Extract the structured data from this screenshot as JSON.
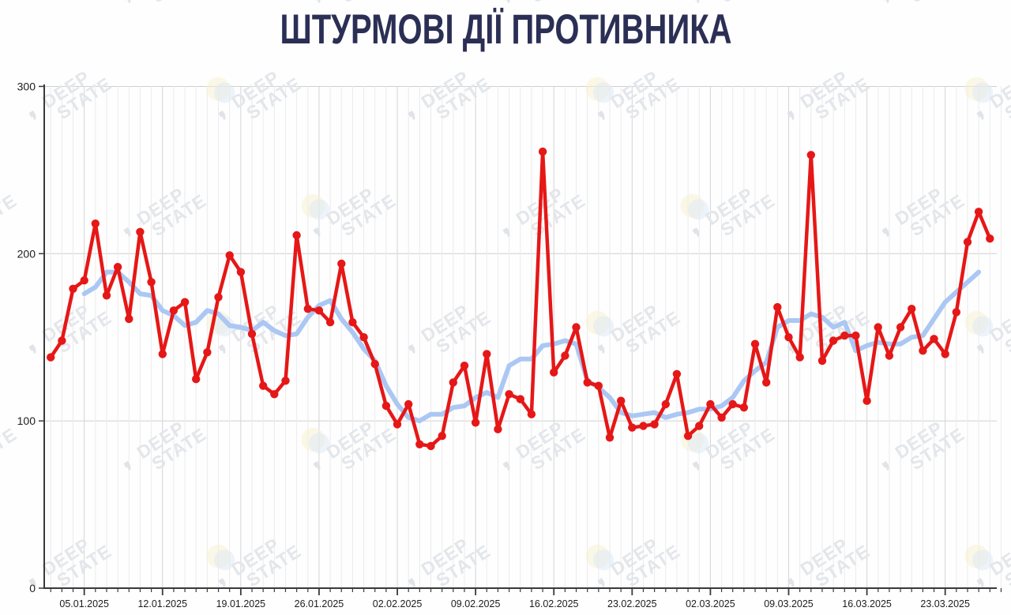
{
  "title": "ШТУРМОВІ ДІЇ ПРОТИВНИКА",
  "watermark": {
    "line1": "DEEP",
    "line2": "STATE"
  },
  "chart_data": {
    "type": "line",
    "title": "ШТУРМОВІ ДІЇ ПРОТИВНИКА",
    "xlabel": "",
    "ylabel": "",
    "ylim": [
      0,
      300
    ],
    "y_ticks": [
      0,
      100,
      200,
      300
    ],
    "grid": true,
    "legend_position": "none",
    "x_tick_labels": [
      "05.01.2025",
      "12.01.2025",
      "19.01.2025",
      "26.01.2025",
      "02.02.2025",
      "09.02.2025",
      "16.02.2025",
      "23.02.2025",
      "02.03.2025",
      "09.03.2025",
      "16.03.2025",
      "23.03.2025"
    ],
    "series": [
      {
        "name": "daily-assault-actions",
        "style": "line+markers",
        "color": "#e61717",
        "start_date": "02.01.2025",
        "end_date": "27.03.2025",
        "values": [
          138,
          148,
          179,
          184,
          218,
          175,
          192,
          161,
          213,
          183,
          140,
          166,
          171,
          125,
          141,
          174,
          199,
          189,
          152,
          121,
          116,
          124,
          211,
          167,
          166,
          159,
          194,
          159,
          150,
          134,
          109,
          98,
          110,
          86,
          85,
          91,
          123,
          133,
          99,
          140,
          95,
          116,
          113,
          104,
          261,
          129,
          139,
          156,
          123,
          121,
          90,
          112,
          96,
          97,
          98,
          110,
          128,
          91,
          97,
          110,
          102,
          110,
          108,
          146,
          123,
          168,
          150,
          138,
          259,
          136,
          148,
          151,
          151,
          112,
          156,
          139,
          156,
          167,
          142,
          149,
          140,
          165,
          207,
          225,
          209
        ]
      },
      {
        "name": "7-day-moving-average",
        "style": "line",
        "color": "#abc7f3",
        "start_date": "05.01.2025",
        "end_date": "26.03.2025",
        "values": [
          176,
          180,
          189,
          189,
          183,
          176,
          175,
          166,
          163,
          157,
          159,
          166,
          164,
          157,
          156,
          154,
          159,
          154,
          151,
          152,
          162,
          169,
          172,
          161,
          153,
          143,
          136,
          121,
          110,
          102,
          100,
          104,
          104,
          108,
          109,
          114,
          117,
          114,
          133,
          137,
          137,
          145,
          146,
          148,
          146,
          124,
          120,
          114,
          105,
          103,
          104,
          105,
          102,
          104,
          105,
          107,
          107,
          109,
          114,
          124,
          130,
          135,
          156,
          160,
          160,
          164,
          162,
          156,
          159,
          142,
          145,
          147,
          146,
          146,
          150,
          151,
          161,
          171,
          177,
          183,
          189
        ]
      }
    ]
  }
}
